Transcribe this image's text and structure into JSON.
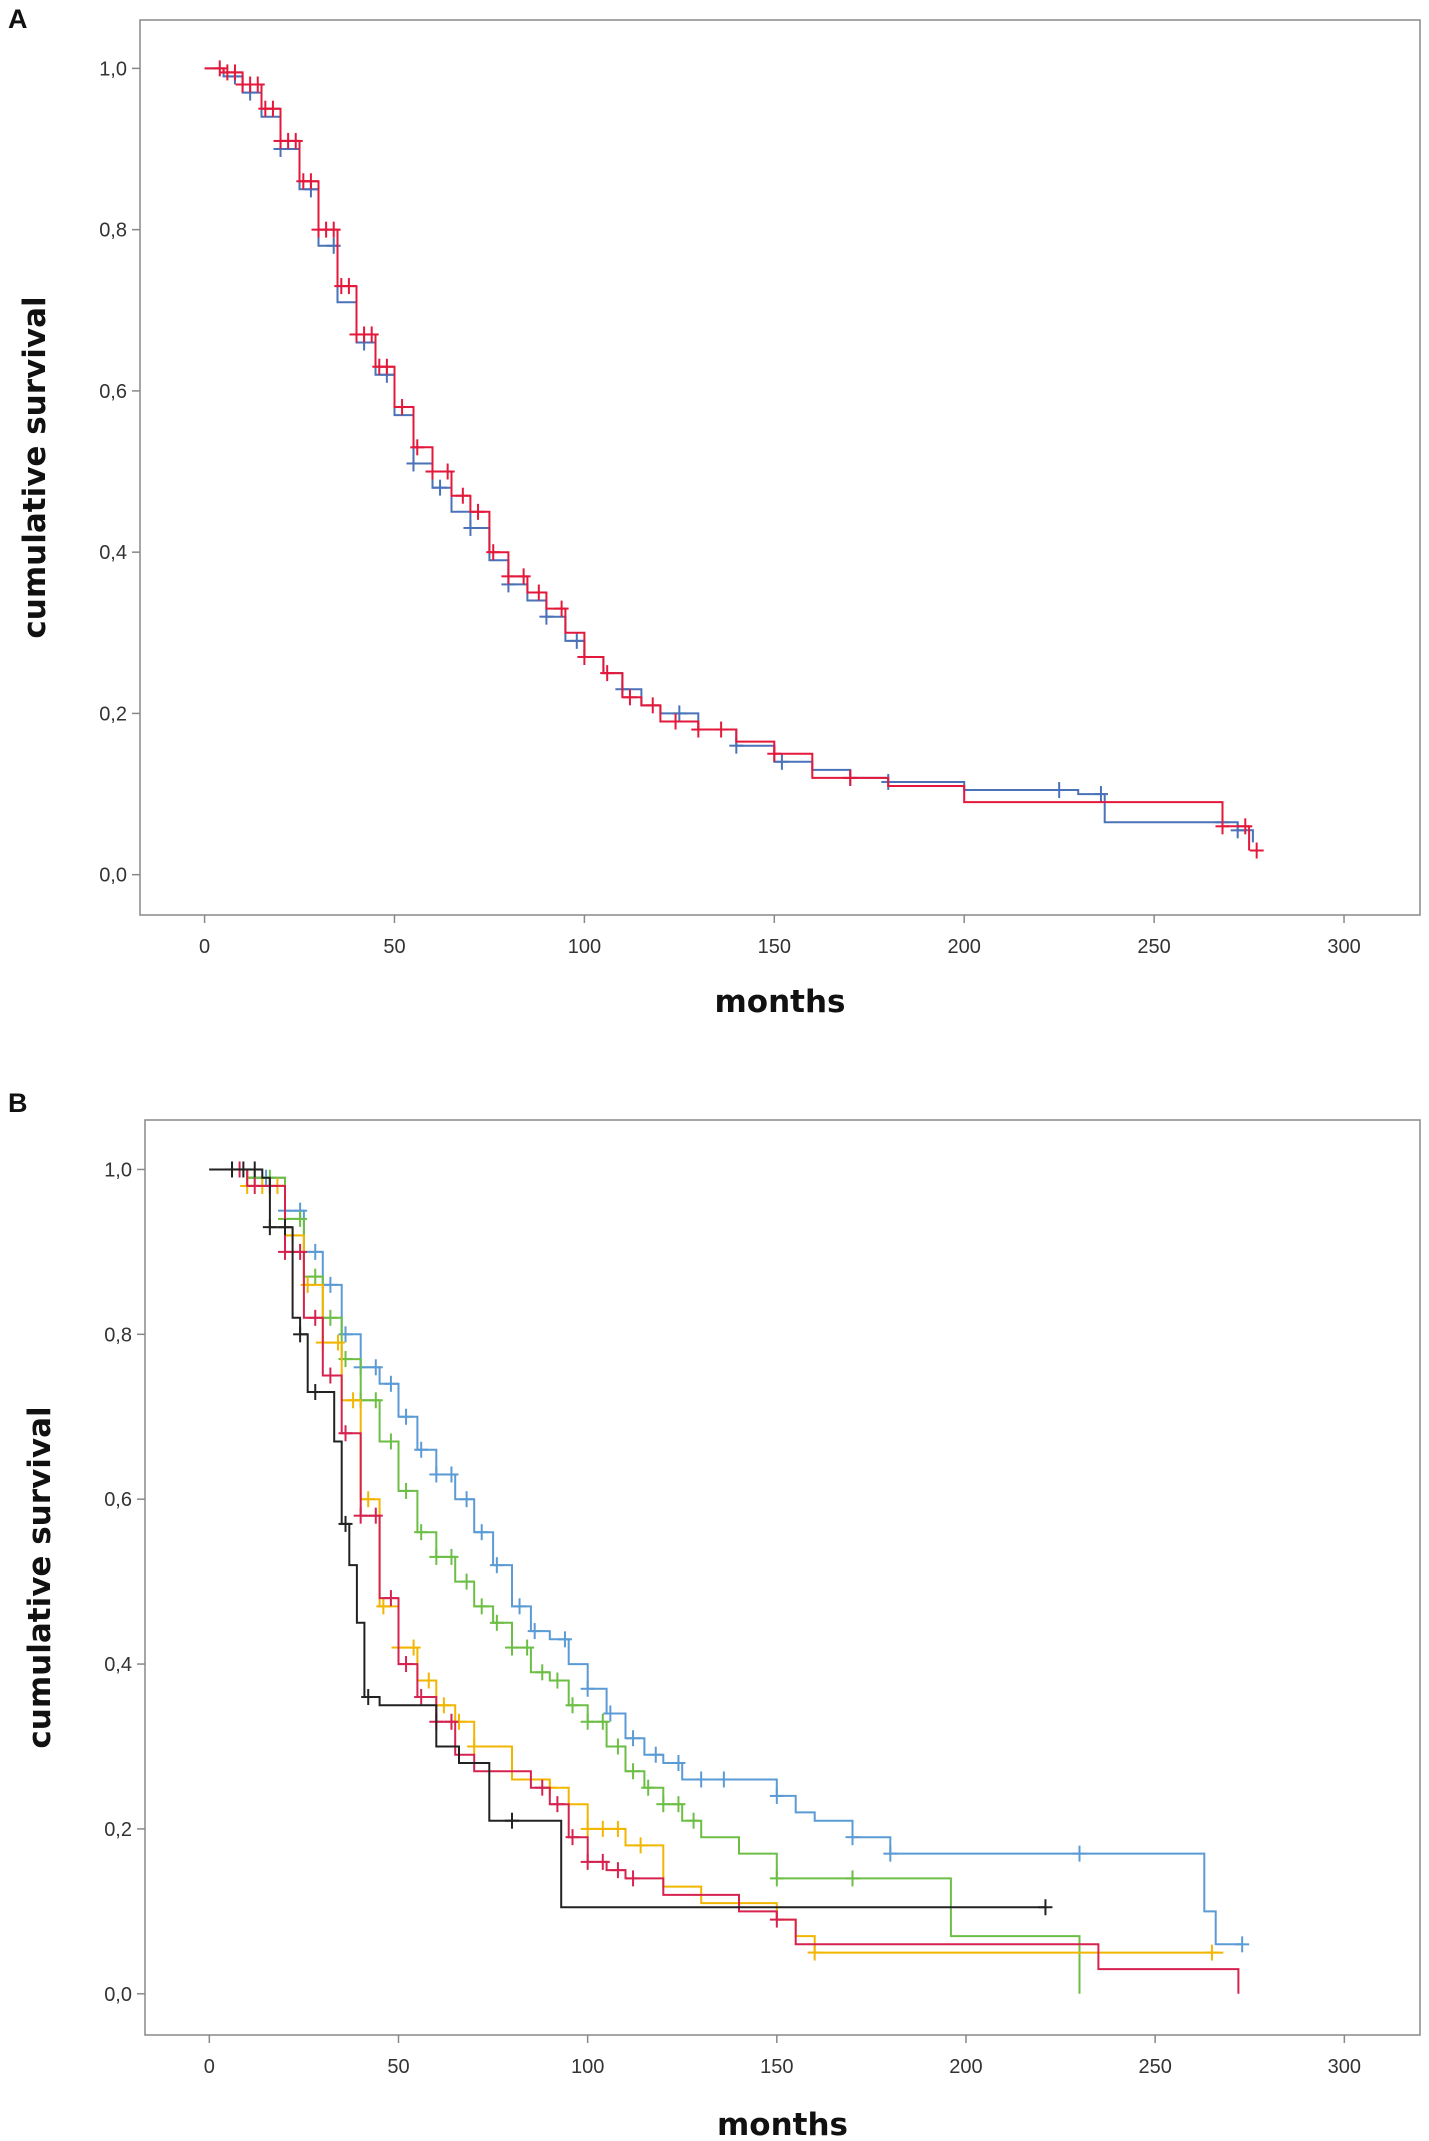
{
  "chart_data": [
    {
      "panel": "A",
      "type": "line",
      "xlabel": "months",
      "ylabel": "cumulative survival",
      "xlim": [
        -17,
        320
      ],
      "ylim": [
        -0.05,
        1.06
      ],
      "xticks": [
        "0",
        "50",
        "100",
        "150",
        "200",
        "250",
        "300"
      ],
      "yticks": [
        "0,0",
        "0,2",
        "0,4",
        "0,6",
        "0,8",
        "1,0"
      ],
      "series": [
        {
          "name": "series-1",
          "color": "#4a72b8",
          "points": [
            [
              0,
              1.0
            ],
            [
              5,
              0.99
            ],
            [
              10,
              0.97
            ],
            [
              15,
              0.94
            ],
            [
              20,
              0.9
            ],
            [
              25,
              0.85
            ],
            [
              30,
              0.78
            ],
            [
              35,
              0.71
            ],
            [
              40,
              0.66
            ],
            [
              45,
              0.62
            ],
            [
              50,
              0.57
            ],
            [
              55,
              0.51
            ],
            [
              60,
              0.48
            ],
            [
              65,
              0.45
            ],
            [
              70,
              0.43
            ],
            [
              75,
              0.39
            ],
            [
              80,
              0.36
            ],
            [
              85,
              0.34
            ],
            [
              90,
              0.32
            ],
            [
              95,
              0.29
            ],
            [
              100,
              0.27
            ],
            [
              105,
              0.25
            ],
            [
              110,
              0.23
            ],
            [
              115,
              0.21
            ],
            [
              120,
              0.2
            ],
            [
              130,
              0.18
            ],
            [
              140,
              0.16
            ],
            [
              150,
              0.14
            ],
            [
              160,
              0.13
            ],
            [
              170,
              0.12
            ],
            [
              180,
              0.115
            ],
            [
              200,
              0.105
            ],
            [
              230,
              0.1
            ],
            [
              237,
              0.065
            ],
            [
              265,
              0.065
            ],
            [
              272,
              0.055
            ],
            [
              276,
              0.04
            ]
          ],
          "censors": [
            8,
            12,
            20,
            28,
            34,
            42,
            48,
            55,
            62,
            70,
            80,
            90,
            98,
            110,
            125,
            140,
            152,
            170,
            180,
            225,
            236,
            268,
            272
          ]
        },
        {
          "name": "series-2",
          "color": "#e3183a",
          "points": [
            [
              0,
              1.0
            ],
            [
              5,
              0.995
            ],
            [
              10,
              0.98
            ],
            [
              15,
              0.95
            ],
            [
              20,
              0.91
            ],
            [
              25,
              0.86
            ],
            [
              30,
              0.8
            ],
            [
              35,
              0.73
            ],
            [
              40,
              0.67
            ],
            [
              45,
              0.63
            ],
            [
              50,
              0.58
            ],
            [
              55,
              0.53
            ],
            [
              60,
              0.5
            ],
            [
              65,
              0.47
            ],
            [
              70,
              0.45
            ],
            [
              75,
              0.4
            ],
            [
              80,
              0.37
            ],
            [
              85,
              0.35
            ],
            [
              90,
              0.33
            ],
            [
              95,
              0.3
            ],
            [
              100,
              0.27
            ],
            [
              105,
              0.25
            ],
            [
              110,
              0.22
            ],
            [
              115,
              0.21
            ],
            [
              120,
              0.19
            ],
            [
              130,
              0.18
            ],
            [
              140,
              0.165
            ],
            [
              150,
              0.15
            ],
            [
              160,
              0.12
            ],
            [
              170,
              0.12
            ],
            [
              180,
              0.11
            ],
            [
              200,
              0.09
            ],
            [
              235,
              0.09
            ],
            [
              264,
              0.09
            ],
            [
              268,
              0.06
            ],
            [
              275,
              0.03
            ]
          ],
          "censors": [
            4,
            6,
            8,
            10,
            12,
            14,
            16,
            18,
            20,
            22,
            24,
            26,
            28,
            30,
            32,
            34,
            36,
            38,
            40,
            42,
            44,
            46,
            48,
            52,
            56,
            60,
            64,
            68,
            72,
            76,
            80,
            84,
            88,
            94,
            100,
            106,
            112,
            118,
            124,
            130,
            136,
            150,
            170,
            268,
            274,
            277
          ]
        }
      ]
    },
    {
      "panel": "B",
      "type": "line",
      "xlabel": "months",
      "ylabel": "cumulative survival",
      "xlim": [
        -17,
        320
      ],
      "ylim": [
        -0.05,
        1.06
      ],
      "xticks": [
        "0",
        "50",
        "100",
        "150",
        "200",
        "250",
        "300"
      ],
      "yticks": [
        "0,0",
        "0,2",
        "0,4",
        "0,6",
        "0,8",
        "1,0"
      ],
      "series": [
        {
          "name": "series-blue",
          "color": "#5b9bd5",
          "points": [
            [
              0,
              1.0
            ],
            [
              10,
              0.99
            ],
            [
              20,
              0.95
            ],
            [
              25,
              0.9
            ],
            [
              30,
              0.86
            ],
            [
              35,
              0.8
            ],
            [
              40,
              0.76
            ],
            [
              45,
              0.74
            ],
            [
              50,
              0.7
            ],
            [
              55,
              0.66
            ],
            [
              60,
              0.63
            ],
            [
              65,
              0.6
            ],
            [
              70,
              0.56
            ],
            [
              75,
              0.52
            ],
            [
              80,
              0.47
            ],
            [
              85,
              0.44
            ],
            [
              90,
              0.43
            ],
            [
              95,
              0.4
            ],
            [
              100,
              0.37
            ],
            [
              105,
              0.34
            ],
            [
              110,
              0.31
            ],
            [
              115,
              0.29
            ],
            [
              120,
              0.28
            ],
            [
              125,
              0.26
            ],
            [
              130,
              0.26
            ],
            [
              140,
              0.26
            ],
            [
              150,
              0.24
            ],
            [
              155,
              0.22
            ],
            [
              160,
              0.21
            ],
            [
              170,
              0.19
            ],
            [
              180,
              0.17
            ],
            [
              200,
              0.17
            ],
            [
              230,
              0.17
            ],
            [
              260,
              0.17
            ],
            [
              263,
              0.1
            ],
            [
              266,
              0.06
            ],
            [
              273,
              0.06
            ]
          ],
          "censors": [
            15,
            20,
            24,
            28,
            32,
            36,
            40,
            44,
            48,
            52,
            56,
            60,
            64,
            68,
            72,
            76,
            82,
            86,
            94,
            100,
            106,
            112,
            118,
            124,
            130,
            136,
            150,
            170,
            180,
            230,
            273
          ]
        },
        {
          "name": "series-green",
          "color": "#6cbe45",
          "points": [
            [
              0,
              1.0
            ],
            [
              10,
              0.99
            ],
            [
              20,
              0.94
            ],
            [
              25,
              0.87
            ],
            [
              30,
              0.82
            ],
            [
              35,
              0.77
            ],
            [
              40,
              0.72
            ],
            [
              45,
              0.67
            ],
            [
              50,
              0.61
            ],
            [
              55,
              0.56
            ],
            [
              60,
              0.53
            ],
            [
              65,
              0.5
            ],
            [
              70,
              0.47
            ],
            [
              75,
              0.45
            ],
            [
              80,
              0.42
            ],
            [
              85,
              0.39
            ],
            [
              90,
              0.38
            ],
            [
              95,
              0.35
            ],
            [
              100,
              0.33
            ],
            [
              105,
              0.3
            ],
            [
              110,
              0.27
            ],
            [
              115,
              0.25
            ],
            [
              120,
              0.23
            ],
            [
              125,
              0.21
            ],
            [
              130,
              0.19
            ],
            [
              140,
              0.17
            ],
            [
              150,
              0.14
            ],
            [
              160,
              0.14
            ],
            [
              170,
              0.14
            ],
            [
              196,
              0.14
            ],
            [
              196,
              0.07
            ],
            [
              230,
              0.07
            ],
            [
              230,
              0.0
            ]
          ],
          "censors": [
            12,
            16,
            20,
            24,
            28,
            32,
            36,
            40,
            44,
            48,
            52,
            56,
            60,
            64,
            68,
            72,
            76,
            80,
            84,
            88,
            92,
            96,
            100,
            104,
            108,
            112,
            116,
            120,
            124,
            128,
            150,
            170
          ]
        },
        {
          "name": "series-yellow",
          "color": "#f2b500",
          "points": [
            [
              0,
              1.0
            ],
            [
              10,
              0.98
            ],
            [
              20,
              0.92
            ],
            [
              25,
              0.86
            ],
            [
              30,
              0.79
            ],
            [
              35,
              0.72
            ],
            [
              40,
              0.6
            ],
            [
              45,
              0.47
            ],
            [
              50,
              0.42
            ],
            [
              55,
              0.38
            ],
            [
              60,
              0.35
            ],
            [
              65,
              0.33
            ],
            [
              70,
              0.3
            ],
            [
              80,
              0.26
            ],
            [
              90,
              0.25
            ],
            [
              95,
              0.23
            ],
            [
              100,
              0.2
            ],
            [
              110,
              0.18
            ],
            [
              120,
              0.13
            ],
            [
              130,
              0.11
            ],
            [
              140,
              0.11
            ],
            [
              150,
              0.09
            ],
            [
              155,
              0.07
            ],
            [
              160,
              0.05
            ],
            [
              200,
              0.05
            ],
            [
              268,
              0.05
            ]
          ],
          "censors": [
            10,
            14,
            18,
            22,
            26,
            30,
            34,
            38,
            42,
            46,
            50,
            54,
            58,
            62,
            66,
            70,
            90,
            100,
            104,
            108,
            114,
            160,
            265
          ]
        },
        {
          "name": "series-red",
          "color": "#d6224f",
          "points": [
            [
              0,
              1.0
            ],
            [
              10,
              0.98
            ],
            [
              20,
              0.9
            ],
            [
              25,
              0.82
            ],
            [
              30,
              0.75
            ],
            [
              35,
              0.68
            ],
            [
              40,
              0.58
            ],
            [
              45,
              0.48
            ],
            [
              50,
              0.4
            ],
            [
              55,
              0.36
            ],
            [
              60,
              0.33
            ],
            [
              65,
              0.29
            ],
            [
              70,
              0.27
            ],
            [
              80,
              0.27
            ],
            [
              85,
              0.25
            ],
            [
              90,
              0.23
            ],
            [
              95,
              0.19
            ],
            [
              100,
              0.16
            ],
            [
              105,
              0.15
            ],
            [
              110,
              0.14
            ],
            [
              120,
              0.12
            ],
            [
              130,
              0.12
            ],
            [
              140,
              0.1
            ],
            [
              150,
              0.09
            ],
            [
              155,
              0.06
            ],
            [
              200,
              0.06
            ],
            [
              235,
              0.06
            ],
            [
              235,
              0.03
            ],
            [
              272,
              0.03
            ],
            [
              272,
              0.0
            ]
          ],
          "censors": [
            8,
            12,
            16,
            20,
            24,
            28,
            32,
            36,
            40,
            44,
            48,
            52,
            56,
            60,
            64,
            88,
            92,
            96,
            100,
            104,
            108,
            112,
            150
          ]
        },
        {
          "name": "series-black",
          "color": "#222222",
          "points": [
            [
              0,
              1.0
            ],
            [
              8,
              1.0
            ],
            [
              14,
              0.99
            ],
            [
              16,
              0.93
            ],
            [
              20,
              0.93
            ],
            [
              22,
              0.82
            ],
            [
              24,
              0.8
            ],
            [
              26,
              0.73
            ],
            [
              30,
              0.73
            ],
            [
              33,
              0.67
            ],
            [
              35,
              0.57
            ],
            [
              37,
              0.52
            ],
            [
              39,
              0.45
            ],
            [
              41,
              0.36
            ],
            [
              45,
              0.35
            ],
            [
              55,
              0.35
            ],
            [
              60,
              0.3
            ],
            [
              66,
              0.28
            ],
            [
              73,
              0.28
            ],
            [
              74,
              0.21
            ],
            [
              80,
              0.21
            ],
            [
              92,
              0.21
            ],
            [
              93,
              0.105
            ],
            [
              221,
              0.105
            ]
          ],
          "censors": [
            6,
            9,
            12,
            16,
            20,
            24,
            28,
            36,
            42,
            80,
            221
          ]
        }
      ]
    }
  ]
}
